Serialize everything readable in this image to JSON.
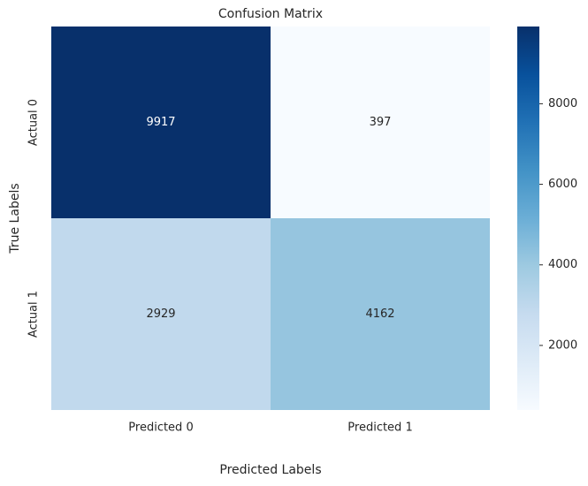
{
  "chart_data": {
    "type": "heatmap",
    "title": "Confusion Matrix",
    "x_label": "Predicted Labels",
    "y_label": "True Labels",
    "x_categories": [
      "Predicted 0",
      "Predicted 1"
    ],
    "y_categories": [
      "Actual 0",
      "Actual 1"
    ],
    "values": [
      [
        9917,
        397
      ],
      [
        2929,
        4162
      ]
    ],
    "zlim": [
      397,
      9917
    ],
    "zticks": [
      2000,
      4000,
      6000,
      8000
    ]
  }
}
